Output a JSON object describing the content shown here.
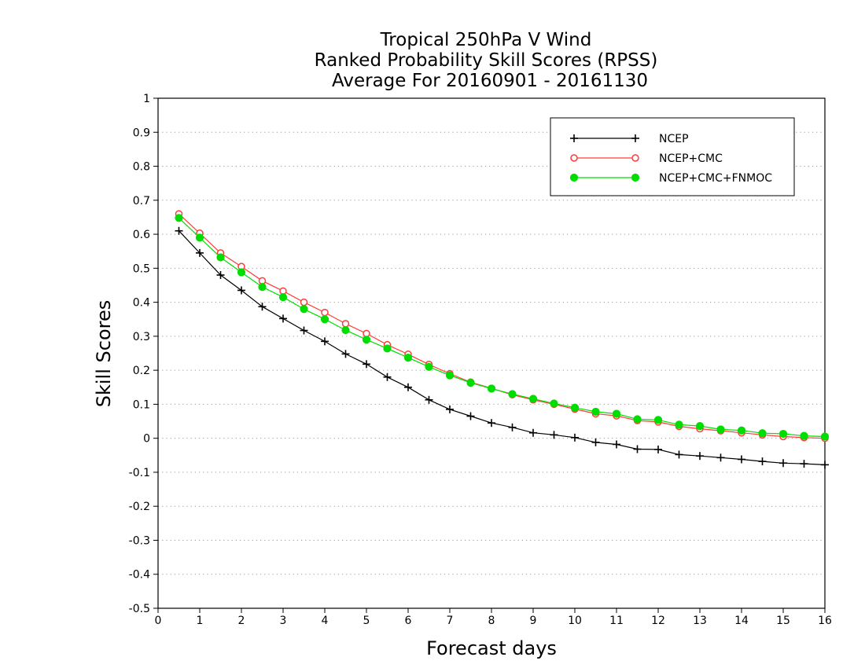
{
  "chart_data": {
    "type": "line",
    "title": [
      "Tropical 250hPa V Wind",
      "Ranked Probability Skill Scores (RPSS)",
      "Average For 20160901 - 20161130"
    ],
    "xlabel": "Forecast days",
    "ylabel": "Skill Scores",
    "xlim": [
      0,
      16
    ],
    "ylim": [
      -0.5,
      1
    ],
    "xticks": [
      0,
      1,
      2,
      3,
      4,
      5,
      6,
      7,
      8,
      9,
      10,
      11,
      12,
      13,
      14,
      15,
      16
    ],
    "yticks": [
      -0.5,
      -0.4,
      -0.3,
      -0.2,
      -0.1,
      0,
      0.1,
      0.2,
      0.3,
      0.4,
      0.5,
      0.6,
      0.7,
      0.8,
      0.9,
      1
    ],
    "grid": "horizontal dotted",
    "legend_position": "top-right",
    "x": [
      0.5,
      1,
      1.5,
      2,
      2.5,
      3,
      3.5,
      4,
      4.5,
      5,
      5.5,
      6,
      6.5,
      7,
      7.5,
      8,
      8.5,
      9,
      9.5,
      10,
      10.5,
      11,
      11.5,
      12,
      12.5,
      13,
      13.5,
      14,
      14.5,
      15,
      15.5,
      16
    ],
    "series": [
      {
        "name": "NCEP",
        "color": "#000000",
        "marker": "plus",
        "values": [
          0.61,
          0.545,
          0.48,
          0.435,
          0.387,
          0.352,
          0.317,
          0.285,
          0.248,
          0.218,
          0.18,
          0.15,
          0.113,
          0.085,
          0.065,
          0.045,
          0.032,
          0.016,
          0.01,
          0.002,
          -0.012,
          -0.018,
          -0.032,
          -0.033,
          -0.048,
          -0.052,
          -0.057,
          -0.062,
          -0.068,
          -0.073,
          -0.075,
          -0.078
        ]
      },
      {
        "name": "NCEP+CMC",
        "color": "#ff3b3b",
        "marker": "open-circle",
        "values": [
          0.66,
          0.603,
          0.545,
          0.505,
          0.463,
          0.433,
          0.4,
          0.37,
          0.337,
          0.308,
          0.275,
          0.247,
          0.217,
          0.19,
          0.165,
          0.147,
          0.128,
          0.113,
          0.1,
          0.086,
          0.072,
          0.066,
          0.052,
          0.048,
          0.035,
          0.028,
          0.022,
          0.016,
          0.01,
          0.005,
          0.002,
          0.0
        ]
      },
      {
        "name": "NCEP+CMC+FNMOC",
        "color": "#00dd00",
        "marker": "filled-circle",
        "values": [
          0.648,
          0.59,
          0.532,
          0.488,
          0.445,
          0.415,
          0.38,
          0.35,
          0.318,
          0.29,
          0.264,
          0.237,
          0.21,
          0.185,
          0.163,
          0.146,
          0.13,
          0.116,
          0.102,
          0.09,
          0.078,
          0.072,
          0.056,
          0.054,
          0.04,
          0.036,
          0.026,
          0.023,
          0.015,
          0.013,
          0.007,
          0.005
        ]
      }
    ]
  }
}
